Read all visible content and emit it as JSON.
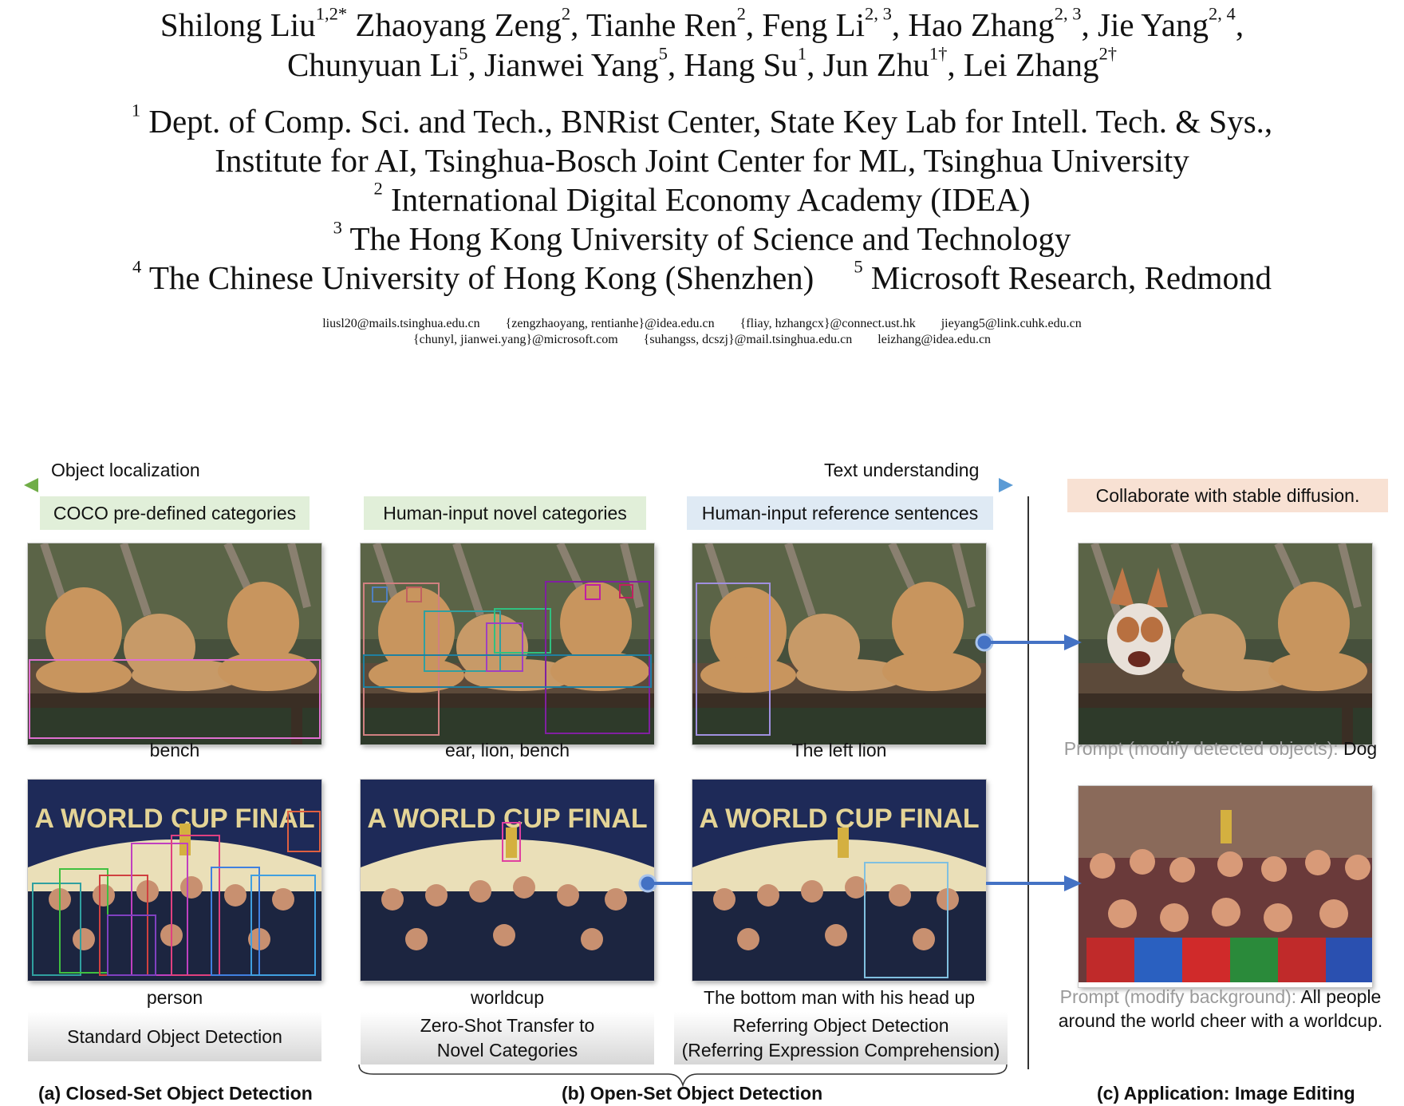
{
  "authors": {
    "line1": [
      {
        "name": "Shilong Liu",
        "sup": "1,2",
        "mark": "*",
        "sep": " "
      },
      {
        "name": "Zhaoyang Zeng",
        "sup": "2",
        "sep": ", "
      },
      {
        "name": "Tianhe Ren",
        "sup": "2",
        "sep": ", "
      },
      {
        "name": "Feng Li",
        "sup": "2, 3",
        "sep": ", "
      },
      {
        "name": "Hao Zhang",
        "sup": "2, 3",
        "sep": ", "
      },
      {
        "name": "Jie Yang",
        "sup": "2, 4",
        "sep": ","
      }
    ],
    "line2": [
      {
        "name": "Chunyuan Li",
        "sup": "5",
        "sep": ", "
      },
      {
        "name": "Jianwei Yang",
        "sup": "5",
        "sep": ", "
      },
      {
        "name": "Hang Su",
        "sup": "1",
        "sep": ", "
      },
      {
        "name": "Jun Zhu",
        "sup": "1†",
        "sep": ", "
      },
      {
        "name": "Lei Zhang",
        "sup": "2†",
        "sep": ""
      }
    ]
  },
  "affiliations": [
    {
      "num": "1",
      "text": "Dept. of Comp. Sci. and Tech., BNRist Center, State Key Lab for Intell. Tech. & Sys.,"
    },
    {
      "num": "",
      "text": "Institute for AI, Tsinghua-Bosch Joint Center for ML, Tsinghua University"
    },
    {
      "num": "2",
      "text": "International Digital Economy Academy (IDEA)"
    },
    {
      "num": "3",
      "text": "The Hong Kong University of Science and Technology"
    },
    {
      "num": "4",
      "text": "The Chinese University of Hong Kong (Shenzhen)",
      "num2": "5",
      "text2": "Microsoft Research, Redmond"
    }
  ],
  "emails": {
    "row1": [
      "liusl20@mails.tsinghua.edu.cn",
      "{zengzhaoyang, rentianhe}@idea.edu.cn",
      "{fliay, hzhangcx}@connect.ust.hk",
      "jieyang5@link.cuhk.edu.cn"
    ],
    "row2": [
      "{chunyl, jianwei.yang}@microsoft.com",
      "{suhangss, dcszj}@mail.tsinghua.edu.cn",
      "leizhang@idea.edu.cn"
    ]
  },
  "figure": {
    "axis_left": "Object localization",
    "axis_right": "Text understanding",
    "tags": {
      "coco": "COCO pre-defined categories",
      "novel": "Human-input novel categories",
      "reference": "Human-input reference sentences",
      "stable": "Collaborate with stable diffusion."
    },
    "captions": {
      "a_top": "bench",
      "a_bottom": "person",
      "b1_top": "ear, lion, bench",
      "b1_bottom": "worldcup",
      "b2_top": "The left lion",
      "b2_bottom": "The bottom man with his head up",
      "c_top_prefix": "Prompt (modify detected objects):",
      "c_top_value": "Dog",
      "c_bottom_prefix": "Prompt (modify background):",
      "c_bottom_value_1": "All people",
      "c_bottom_value_2": "around the world cheer with a worldcup."
    },
    "tasks": {
      "standard": "Standard Object Detection",
      "zeroshot_1": "Zero-Shot Transfer to",
      "zeroshot_2": "Novel Categories",
      "referring_1": "Referring Object Detection",
      "referring_2": "(Referring Expression Comprehension)"
    },
    "panel_titles": {
      "a": "(a) Closed-Set Object Detection",
      "b": "(b) Open-Set Object Detection",
      "c": "(c) Application: Image Editing"
    },
    "image_banner": "A WORLD CUP FINAL",
    "colors": {
      "arrow_green": "#70ad47",
      "arrow_blue": "#5b9bd5",
      "connector": "#4472c4"
    }
  }
}
